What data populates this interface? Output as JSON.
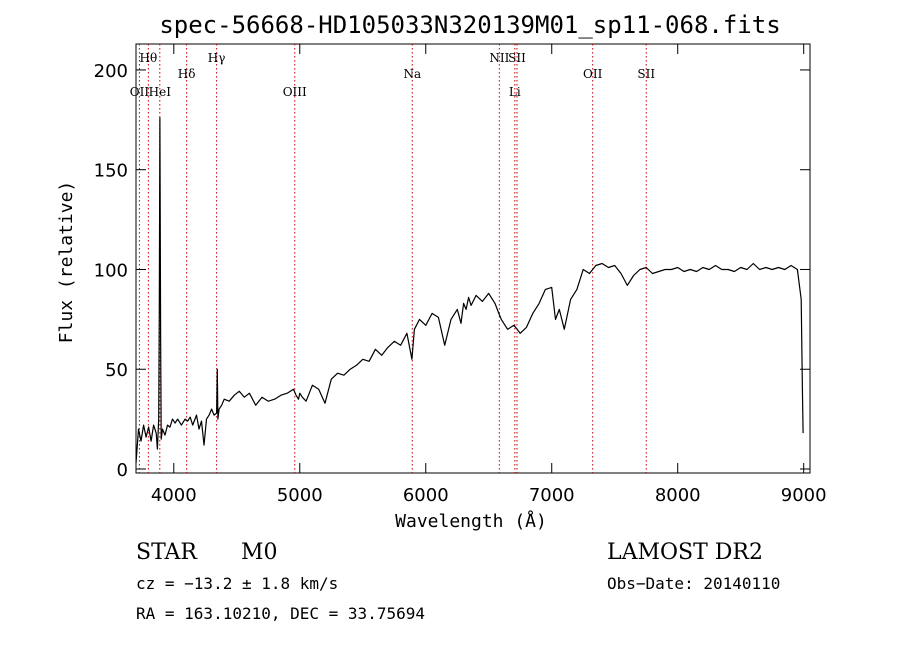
{
  "chart_data": {
    "type": "line",
    "title": "spec-56668-HD105033N320139M01_sp11-068.fits",
    "xlabel": "Wavelength (Å)",
    "ylabel": "Flux (relative)",
    "xlim": [
      3700,
      9050
    ],
    "ylim": [
      -2,
      213
    ],
    "xticks": [
      4000,
      5000,
      6000,
      7000,
      8000,
      9000
    ],
    "yticks": [
      0,
      50,
      100,
      150,
      200
    ],
    "line_color": "#000000",
    "marker_color": "#cc0000",
    "series": [
      {
        "x": [
          3700,
          3720,
          3740,
          3760,
          3780,
          3800,
          3820,
          3840,
          3860,
          3870,
          3880,
          3885,
          3890,
          3895,
          3900,
          3910,
          3930,
          3950,
          3970,
          3990,
          4010,
          4030,
          4060,
          4090,
          4110,
          4130,
          4150,
          4180,
          4200,
          4220,
          4240,
          4260,
          4280,
          4300,
          4320,
          4340,
          4345,
          4350,
          4360,
          4380,
          4400,
          4440,
          4480,
          4520,
          4560,
          4600,
          4650,
          4700,
          4750,
          4800,
          4850,
          4900,
          4950,
          4970,
          4990,
          5000,
          5020,
          5050,
          5100,
          5150,
          5200,
          5250,
          5300,
          5350,
          5400,
          5450,
          5500,
          5550,
          5600,
          5650,
          5700,
          5750,
          5800,
          5850,
          5890,
          5910,
          5950,
          6000,
          6050,
          6100,
          6150,
          6200,
          6250,
          6280,
          6300,
          6320,
          6340,
          6360,
          6400,
          6450,
          6500,
          6550,
          6580,
          6600,
          6650,
          6700,
          6750,
          6800,
          6850,
          6900,
          6950,
          7000,
          7030,
          7060,
          7100,
          7150,
          7200,
          7250,
          7300,
          7350,
          7400,
          7450,
          7500,
          7550,
          7600,
          7650,
          7700,
          7750,
          7800,
          7850,
          7900,
          7950,
          8000,
          8050,
          8100,
          8150,
          8200,
          8250,
          8300,
          8350,
          8400,
          8450,
          8500,
          8550,
          8600,
          8650,
          8700,
          8750,
          8800,
          8850,
          8900,
          8950,
          8980,
          8990,
          8995
        ],
        "values": [
          3,
          20,
          14,
          22,
          16,
          21,
          14,
          22,
          18,
          10,
          25,
          80,
          176,
          70,
          15,
          20,
          17,
          22,
          21,
          25,
          23,
          25,
          22,
          25,
          24,
          26,
          22,
          27,
          20,
          24,
          12,
          25,
          27,
          30,
          27,
          28,
          50,
          25,
          30,
          32,
          35,
          34,
          37,
          39,
          36,
          38,
          32,
          36,
          34,
          35,
          37,
          38,
          40,
          37,
          35,
          38,
          36,
          34,
          42,
          40,
          33,
          45,
          48,
          47,
          50,
          52,
          55,
          54,
          60,
          57,
          61,
          64,
          62,
          68,
          55,
          70,
          75,
          72,
          78,
          76,
          62,
          75,
          80,
          73,
          83,
          80,
          86,
          82,
          87,
          84,
          88,
          83,
          78,
          75,
          70,
          72,
          68,
          71,
          78,
          83,
          90,
          91,
          75,
          80,
          70,
          85,
          90,
          100,
          98,
          102,
          103,
          101,
          102,
          98,
          92,
          97,
          100,
          101,
          98,
          99,
          100,
          100,
          101,
          99,
          100,
          99,
          101,
          100,
          102,
          100,
          100,
          99,
          101,
          100,
          103,
          100,
          101,
          100,
          101,
          100,
          102,
          100,
          85,
          40,
          18
        ]
      }
    ],
    "spectral_lines": [
      {
        "label": "OII",
        "x": 3727,
        "row": "low"
      },
      {
        "label": "Hθ",
        "x": 3798,
        "row": "top"
      },
      {
        "label": "HeI",
        "x": 3889,
        "row": "low"
      },
      {
        "label": "Hδ",
        "x": 4102,
        "row": "mid"
      },
      {
        "label": "Hγ",
        "x": 4340,
        "row": "top"
      },
      {
        "label": "OIII",
        "x": 4960,
        "row": "low"
      },
      {
        "label": "Na",
        "x": 5893,
        "row": "mid"
      },
      {
        "label": "NII",
        "x": 6584,
        "row": "top"
      },
      {
        "label": "Li",
        "x": 6707,
        "row": "low"
      },
      {
        "label": "SII",
        "x": 6724,
        "row": "top"
      },
      {
        "label": "OII",
        "x": 7325,
        "row": "mid"
      },
      {
        "label": "SII",
        "x": 7750,
        "row": "mid"
      }
    ]
  },
  "info": {
    "type_label": "STAR",
    "subclass": "M0",
    "survey": "LAMOST DR2",
    "cz": "cz = −13.2 ± 1.8 km/s",
    "obs_date": "Obs−Date: 20140110",
    "coords": "RA = 163.10210, DEC =  33.75694"
  }
}
